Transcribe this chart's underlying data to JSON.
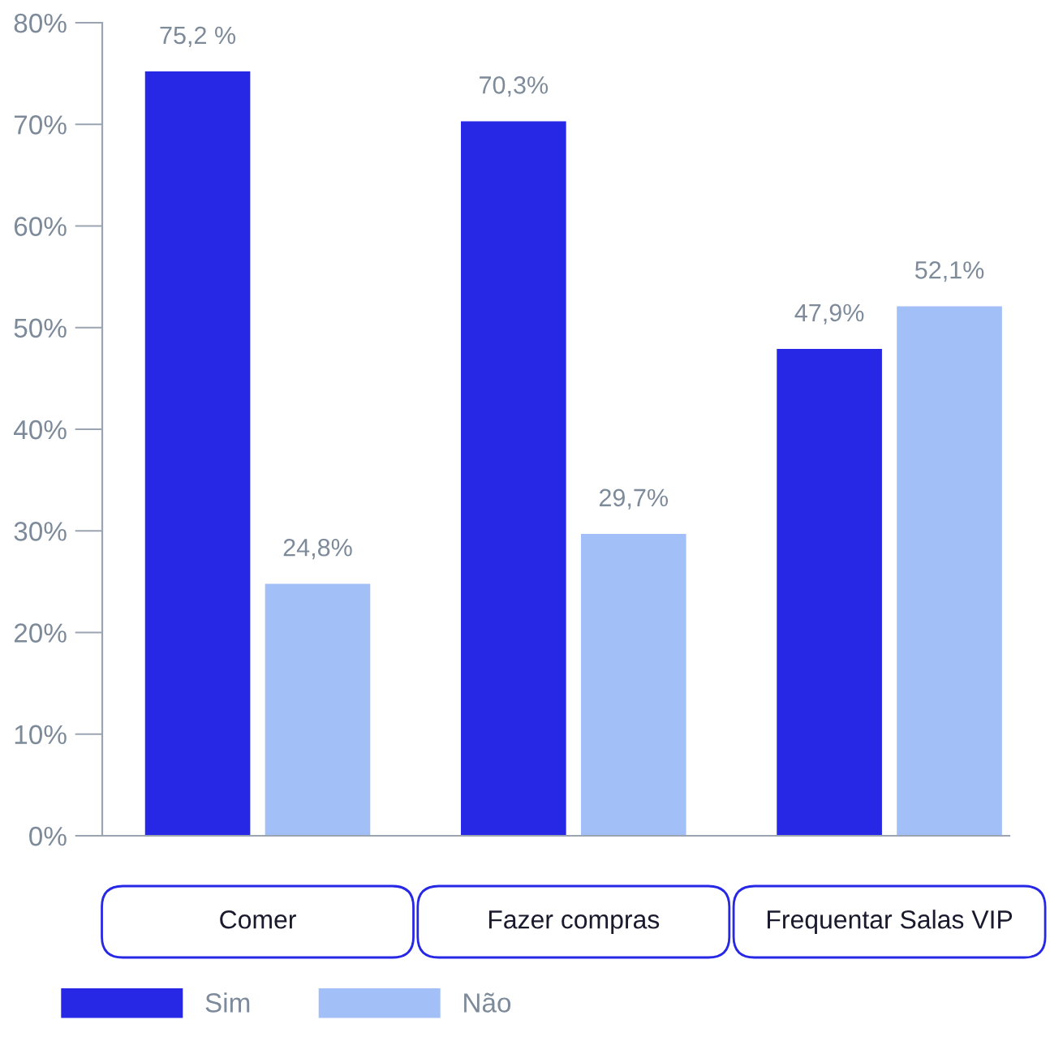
{
  "chart_data": {
    "type": "bar",
    "categories": [
      "Comer",
      "Fazer compras",
      "Frequentar Salas VIP"
    ],
    "series": [
      {
        "name": "Sim",
        "color": "#2727e6",
        "values": [
          75.2,
          70.3,
          47.9
        ],
        "value_labels": [
          "75,2 %",
          "70,3%",
          "47,9%"
        ]
      },
      {
        "name": "Não",
        "color": "#a3bff8",
        "values": [
          24.8,
          29.7,
          52.1
        ],
        "value_labels": [
          "24,8%",
          "29,7%",
          "52,1%"
        ]
      }
    ],
    "ylim": [
      0,
      80
    ],
    "yticks": [
      {
        "value": 0,
        "label": "0%"
      },
      {
        "value": 10,
        "label": "10%"
      },
      {
        "value": 20,
        "label": "20%"
      },
      {
        "value": 30,
        "label": "30%"
      },
      {
        "value": 40,
        "label": "40%"
      },
      {
        "value": 50,
        "label": "50%"
      },
      {
        "value": 60,
        "label": "60%"
      },
      {
        "value": 70,
        "label": "70%"
      },
      {
        "value": 80,
        "label": "80%"
      }
    ],
    "grid": false,
    "legend": "bottom left"
  }
}
